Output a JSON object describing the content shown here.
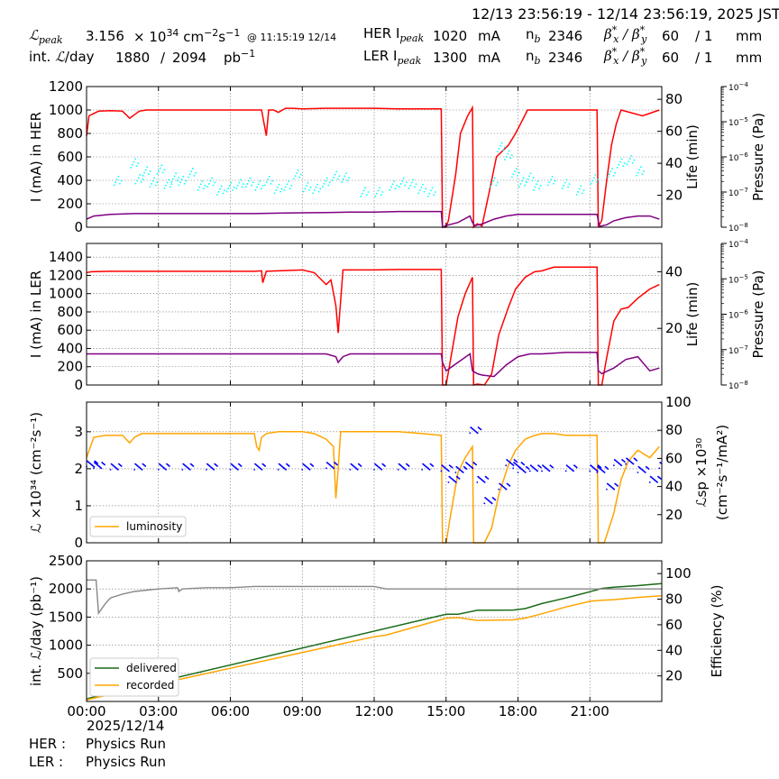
{
  "header": {
    "date_range": "12/13 23:56:19 - 12/14 23:56:19, 2025 JST",
    "lpeak_label": "peak",
    "lpeak_value": "3.156",
    "lpeak_unit_a": "× 10",
    "lpeak_unit_exp": "34",
    "lpeak_unit_b": " cm",
    "lpeak_unit_exp2": "−2",
    "lpeak_unit_c": "s",
    "lpeak_unit_exp3": "−1",
    "lpeak_time": "@ 11:15:19 12/14",
    "intl_label": "int. ",
    "intl_label_b": "/day",
    "intl_delivered": "1880",
    "intl_sep": "/",
    "intl_total": "2094",
    "intl_unit": "pb",
    "intl_unit_exp": "−1",
    "her_label": "HER I",
    "her_sub": "peak",
    "her_value": "1020",
    "her_unit": "mA",
    "ler_label": "LER I",
    "ler_sub": "peak",
    "ler_value": "1300",
    "ler_unit": "mA",
    "nb_label": "n",
    "nb_sub": "b",
    "her_nb": "2346",
    "ler_nb": "2346",
    "beta_label": "β",
    "beta_x": "x",
    "beta_y": "y",
    "beta_star": "*",
    "beta_sep": " / ",
    "her_beta": "60",
    "her_beta_ratio": "/ 1",
    "ler_beta": "60",
    "ler_beta_ratio": "/ 1",
    "beta_unit": "mm"
  },
  "footer": {
    "date": "2025/12/14",
    "her_label": "HER :",
    "her_mode": "Physics Run",
    "ler_label": "LER :",
    "ler_mode": "Physics Run"
  },
  "colors": {
    "current": "#ff0000",
    "lifetime": "#800080",
    "pressure": "#00ffff",
    "luminosity": "#ffa500",
    "specific_lumi": "#0000ff",
    "delivered": "#1a6b1a",
    "recorded": "#ffa500",
    "efficiency": "#888888"
  },
  "chart_data": [
    {
      "type": "line",
      "ylabel": "I (mA) in HER",
      "ylabel2": "Life (min)",
      "ylabel3": "Pressure (Pa)",
      "ylim": [
        0,
        1200
      ],
      "yticks": [
        0,
        200,
        400,
        600,
        800,
        1000,
        1200
      ],
      "y2lim": [
        0,
        88
      ],
      "y2ticks": [
        20,
        40,
        60,
        80
      ],
      "y3ticks": [
        "10",
        "10",
        "10",
        "10",
        "10"
      ],
      "y3exps": [
        "−8",
        "−7",
        "−6",
        "−5",
        "−4"
      ],
      "series": [
        {
          "key": "current",
          "x": [
            0,
            0.1,
            0.5,
            1,
            1.5,
            1.8,
            2,
            2.2,
            2.5,
            3,
            4,
            5,
            6,
            7,
            7.3,
            7.5,
            7.6,
            7.8,
            8,
            8.3,
            8.6,
            9,
            10,
            11,
            12,
            13,
            14,
            14.8,
            14.85,
            15,
            15.1,
            15.4,
            15.6,
            15.9,
            16.1,
            16.15,
            16.3,
            16.5,
            16.8,
            17.1,
            17.6,
            17.9,
            18.1,
            18.4,
            18.7,
            19,
            19.5,
            20,
            20.5,
            21,
            21.3,
            21.35,
            21.5,
            21.7,
            21.9,
            22.1,
            22.3,
            23.2,
            23.9
          ],
          "y": [
            780,
            950,
            990,
            995,
            990,
            930,
            960,
            990,
            1000,
            1000,
            1000,
            1000,
            1000,
            1000,
            1000,
            780,
            1000,
            1000,
            980,
            1015,
            1015,
            1010,
            1015,
            1015,
            1015,
            1010,
            1010,
            1010,
            0,
            0,
            60,
            450,
            800,
            950,
            1020,
            0,
            30,
            10,
            300,
            600,
            700,
            800,
            880,
            1000,
            1000,
            1000,
            1000,
            1000,
            1000,
            1000,
            1000,
            0,
            60,
            400,
            700,
            880,
            1000,
            950,
            1000
          ]
        },
        {
          "key": "lifetime",
          "x": [
            0,
            0.3,
            1,
            2,
            3,
            4,
            5,
            6,
            7,
            8,
            9,
            10,
            11,
            12,
            13,
            14,
            14.8,
            14.85,
            15,
            15.5,
            16,
            16.1,
            16.2,
            16.5,
            17,
            17.5,
            18,
            19,
            20,
            21,
            21.3,
            21.4,
            21.7,
            22,
            22.5,
            23,
            23.5,
            23.9
          ],
          "y": [
            5,
            7,
            8,
            8.5,
            8.5,
            8.5,
            8.5,
            8.5,
            8.5,
            8.8,
            9,
            9.2,
            9.5,
            9.5,
            9.8,
            9.8,
            9.8,
            0,
            1,
            3,
            7,
            3,
            1,
            2,
            5,
            7,
            8,
            8,
            8,
            8,
            8,
            0.5,
            1.5,
            4,
            6,
            7,
            7,
            5
          ]
        },
        {
          "key": "pressure_cloud",
          "x": [
            1.3,
            2,
            2.2,
            2.5,
            2.8,
            3.1,
            3.4,
            3.7,
            4,
            4.4,
            4.8,
            5.2,
            5.6,
            6,
            6.4,
            6.8,
            7.2,
            7.6,
            8,
            8.4,
            8.8,
            9.2,
            9.6,
            10,
            10.4,
            10.8,
            11.6,
            12.2,
            12.8,
            13.2,
            13.6,
            14,
            14.4,
            17,
            17.3,
            17.6,
            17.9,
            18.2,
            18.5,
            18.8,
            19.4,
            20,
            20.6,
            21.2,
            21.9,
            22.3,
            22.7,
            23.1
          ],
          "y": [
            29,
            40,
            30,
            35,
            28,
            36,
            27,
            31,
            29,
            34,
            26,
            28,
            23,
            25,
            27,
            28,
            26,
            29,
            24,
            26,
            33,
            25,
            24,
            28,
            32,
            31,
            22,
            22,
            26,
            28,
            27,
            24,
            22,
            28,
            50,
            45,
            34,
            28,
            31,
            26,
            29,
            27,
            23,
            30,
            34,
            40,
            42,
            35
          ]
        }
      ]
    },
    {
      "type": "line",
      "ylabel": "I (mA) in LER",
      "ylabel2": "Life (min)",
      "ylabel3": "Pressure (Pa)",
      "ylim": [
        0,
        1550
      ],
      "yticks": [
        0,
        200,
        400,
        600,
        800,
        1000,
        1200,
        1400
      ],
      "y2lim": [
        0,
        50
      ],
      "y2ticks": [
        20,
        40
      ],
      "y3ticks": [
        "10",
        "10",
        "10",
        "10",
        "10"
      ],
      "y3exps": [
        "−8",
        "−7",
        "−6",
        "−5",
        "−4"
      ],
      "series": [
        {
          "key": "current",
          "x": [
            0,
            0.2,
            1,
            2,
            3,
            4,
            5,
            6,
            7,
            7.3,
            7.35,
            7.5,
            8,
            9,
            9.5,
            10,
            10.2,
            10.4,
            10.5,
            10.7,
            11,
            12,
            13,
            14,
            14.8,
            14.85,
            15,
            15.2,
            15.5,
            15.8,
            16.1,
            16.15,
            16.3,
            16.6,
            16.9,
            17.2,
            17.6,
            17.9,
            18.3,
            18.7,
            19,
            19.5,
            20,
            20.5,
            21,
            21.3,
            21.35,
            21.5,
            21.7,
            22,
            22.3,
            22.6,
            23,
            23.5,
            23.9
          ],
          "y": [
            1230,
            1240,
            1245,
            1245,
            1245,
            1245,
            1245,
            1245,
            1245,
            1250,
            1120,
            1245,
            1250,
            1260,
            1230,
            1100,
            1150,
            870,
            570,
            1260,
            1260,
            1260,
            1265,
            1265,
            1265,
            0,
            0,
            300,
            750,
            1000,
            1180,
            0,
            10,
            0,
            120,
            550,
            850,
            1050,
            1180,
            1240,
            1250,
            1290,
            1290,
            1290,
            1290,
            1290,
            0,
            0,
            300,
            700,
            830,
            850,
            950,
            1050,
            1100
          ]
        },
        {
          "key": "lifetime",
          "x": [
            0,
            1,
            2,
            3,
            4,
            5,
            6,
            7,
            8,
            9,
            10,
            10.4,
            10.5,
            10.7,
            11,
            12,
            13,
            14,
            14.8,
            14.85,
            15,
            15.5,
            16,
            16.1,
            16.3,
            16.5,
            17,
            17.5,
            18,
            18.5,
            19,
            20,
            21,
            21.3,
            21.35,
            21.5,
            22,
            22.5,
            23,
            23.5,
            23.9
          ],
          "y": [
            11,
            11,
            11,
            11,
            11,
            11,
            11,
            11,
            11,
            11,
            11,
            10,
            8,
            10,
            11,
            11,
            11,
            11,
            11,
            8,
            5,
            8,
            11,
            5,
            4,
            3.5,
            3,
            7,
            10,
            11,
            11,
            11.5,
            11.5,
            11.5,
            5,
            4,
            6,
            9,
            10,
            5,
            6
          ]
        }
      ]
    },
    {
      "type": "line",
      "ylabel": "ℒ ×10³⁴ (cm⁻²s⁻¹)",
      "ylabel2": "ℒsp ×10³⁰",
      "ylabel2b": "(cm⁻²s⁻¹/mA²)",
      "ylim": [
        0,
        3.8
      ],
      "yticks": [
        0,
        1,
        2,
        3
      ],
      "y2lim": [
        0,
        100
      ],
      "y2ticks": [
        20,
        40,
        60,
        80,
        100
      ],
      "legend": "luminosity",
      "series": [
        {
          "key": "luminosity",
          "x": [
            0,
            0.3,
            0.8,
            1.5,
            1.8,
            2,
            2.3,
            3,
            4,
            5,
            6,
            7,
            7.1,
            7.2,
            7.3,
            7.5,
            8,
            8.3,
            9,
            9.5,
            10,
            10.3,
            10.4,
            10.5,
            10.6,
            11,
            12,
            13,
            14,
            14.8,
            14.85,
            15,
            15.2,
            15.5,
            15.8,
            16.1,
            16.15,
            16.3,
            16.6,
            16.9,
            17.2,
            17.6,
            17.9,
            18.3,
            18.7,
            19,
            19.5,
            20,
            20.5,
            21,
            21.3,
            21.35,
            21.6,
            22,
            22.3,
            22.6,
            23,
            23.5,
            23.9
          ],
          "y": [
            2.3,
            2.85,
            2.9,
            2.9,
            2.7,
            2.85,
            2.95,
            2.95,
            2.95,
            2.95,
            2.95,
            2.95,
            2.6,
            2.5,
            2.85,
            2.95,
            3.0,
            3.0,
            3.0,
            2.95,
            2.8,
            2.6,
            1.2,
            2.0,
            3.0,
            3.0,
            3.0,
            3.0,
            2.95,
            2.9,
            0,
            0,
            0.8,
            1.9,
            2.3,
            2.6,
            0,
            0,
            0,
            0.4,
            1.3,
            2.1,
            2.5,
            2.8,
            2.9,
            2.95,
            2.95,
            2.9,
            2.9,
            2.9,
            2.9,
            0,
            0,
            0.8,
            1.7,
            2.2,
            2.5,
            2.3,
            2.6
          ]
        },
        {
          "key": "specific_lumi",
          "x": [
            0,
            0.3,
            1,
            2,
            3,
            4,
            5,
            6,
            7,
            8,
            9,
            10,
            11,
            12,
            13,
            14,
            14.8,
            15.1,
            15.4,
            15.8,
            16,
            16.3,
            16.6,
            17.2,
            17.5,
            17.8,
            18,
            18.5,
            19,
            20,
            21,
            21.3,
            21.7,
            22,
            22.5,
            23,
            23.5,
            23.9
          ],
          "y": [
            56,
            55,
            54,
            54,
            54,
            54,
            54,
            54,
            54,
            54,
            54,
            55,
            54,
            54,
            54,
            54,
            53,
            45,
            52,
            55,
            80,
            45,
            30,
            40,
            57,
            55,
            52,
            53,
            53,
            53,
            53,
            52,
            40,
            57,
            58,
            52,
            45,
            55
          ]
        }
      ]
    },
    {
      "type": "line",
      "ylabel": "int. ℒ/day (pb⁻¹)",
      "ylabel2": "Efficiency (%)",
      "ylim": [
        0,
        2500
      ],
      "yticks": [
        500,
        1000,
        1500,
        2000,
        2500
      ],
      "y2lim": [
        0,
        110
      ],
      "y2ticks": [
        20,
        40,
        60,
        80,
        100
      ],
      "xticks": [
        "00:00",
        "03:00",
        "06:00",
        "09:00",
        "12:00",
        "15:00",
        "18:00",
        "21:00"
      ],
      "xtick_hours": [
        0,
        3,
        6,
        9,
        12,
        15,
        18,
        21
      ],
      "xlim": [
        0,
        24
      ],
      "legend": [
        "delivered",
        "recorded"
      ],
      "series": [
        {
          "key": "delivered",
          "x": [
            0,
            0.1,
            15,
            15.5,
            16.3,
            17.8,
            18.3,
            19,
            20,
            21,
            21.5,
            22,
            23,
            24
          ],
          "y": [
            40,
            60,
            1550,
            1550,
            1620,
            1625,
            1650,
            1740,
            1840,
            1950,
            2010,
            2030,
            2060,
            2094
          ]
        },
        {
          "key": "recorded",
          "x": [
            0,
            0.1,
            12,
            12.5,
            15,
            15.5,
            16.3,
            17.8,
            18.3,
            19,
            20,
            21,
            21.5,
            22,
            23,
            24
          ],
          "y": [
            20,
            40,
            1150,
            1180,
            1480,
            1490,
            1440,
            1450,
            1480,
            1560,
            1680,
            1780,
            1800,
            1810,
            1850,
            1880
          ]
        },
        {
          "key": "efficiency",
          "x": [
            0,
            0.4,
            0.5,
            0.8,
            1,
            1.5,
            2,
            3,
            3.8,
            3.85,
            4,
            5,
            6,
            7,
            8,
            9,
            10,
            11,
            12,
            12.5,
            13,
            14,
            15,
            16,
            17,
            18,
            19,
            20,
            21,
            22,
            23,
            24
          ],
          "y": [
            95,
            95,
            69,
            77,
            81,
            84,
            86,
            88,
            89,
            86,
            88,
            89,
            89,
            90,
            90,
            90,
            90,
            90,
            90,
            88,
            88,
            88,
            88,
            88,
            88,
            88,
            88,
            88,
            88,
            88,
            88,
            88
          ]
        }
      ]
    }
  ]
}
